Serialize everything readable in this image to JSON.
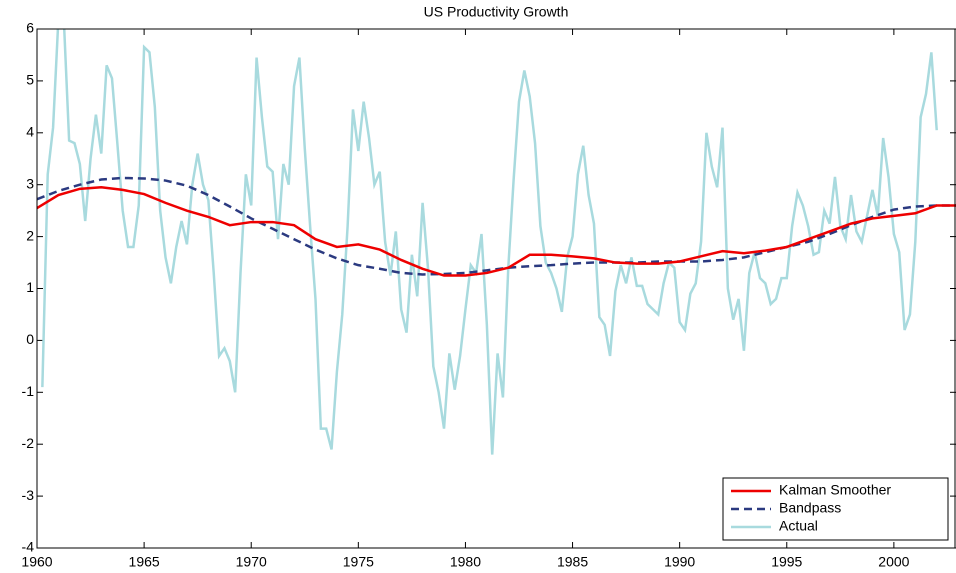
{
  "chart_data": {
    "type": "line",
    "title": "US Productivity Growth",
    "xlim": [
      1960,
      2002.9
    ],
    "xticks": [
      1960,
      1965,
      1970,
      1975,
      1980,
      1985,
      1990,
      1995,
      2000
    ],
    "ylim": [
      -4,
      6
    ],
    "yticks": [
      -4,
      -3,
      -2,
      -1,
      0,
      1,
      2,
      3,
      4,
      5,
      6
    ],
    "legend": "lower right",
    "series": [
      {
        "name": "Kalman Smoother",
        "color": "#ee0000",
        "style": "solid",
        "x": [
          1960,
          1961,
          1962,
          1963,
          1964,
          1965,
          1966,
          1967,
          1968,
          1969,
          1970,
          1971,
          1972,
          1973,
          1974,
          1975,
          1976,
          1977,
          1978,
          1979,
          1980,
          1981,
          1982,
          1983,
          1984,
          1985,
          1986,
          1987,
          1988,
          1989,
          1990,
          1991,
          1992,
          1993,
          1994,
          1995,
          1996,
          1997,
          1998,
          1999,
          2000,
          2001,
          2002,
          2002.9
        ],
        "values": [
          2.55,
          2.8,
          2.92,
          2.95,
          2.9,
          2.82,
          2.65,
          2.5,
          2.38,
          2.22,
          2.28,
          2.28,
          2.22,
          1.95,
          1.8,
          1.85,
          1.75,
          1.55,
          1.38,
          1.25,
          1.25,
          1.3,
          1.4,
          1.65,
          1.65,
          1.62,
          1.58,
          1.5,
          1.48,
          1.48,
          1.52,
          1.62,
          1.72,
          1.68,
          1.73,
          1.8,
          1.95,
          2.1,
          2.25,
          2.35,
          2.4,
          2.45,
          2.6,
          2.6
        ]
      },
      {
        "name": "Bandpass",
        "color": "#2b3a80",
        "style": "dashed",
        "x": [
          1960,
          1961,
          1962,
          1963,
          1964,
          1965,
          1966,
          1967,
          1968,
          1969,
          1970,
          1971,
          1972,
          1973,
          1974,
          1975,
          1976,
          1977,
          1978,
          1979,
          1980,
          1981,
          1982,
          1983,
          1984,
          1985,
          1986,
          1987,
          1988,
          1989,
          1990,
          1991,
          1992,
          1993,
          1994,
          1995,
          1996,
          1997,
          1998,
          1999,
          2000,
          2001,
          2002,
          2002.9
        ],
        "values": [
          2.72,
          2.88,
          3.0,
          3.1,
          3.13,
          3.12,
          3.08,
          2.98,
          2.8,
          2.58,
          2.35,
          2.15,
          1.95,
          1.75,
          1.58,
          1.45,
          1.38,
          1.3,
          1.27,
          1.28,
          1.3,
          1.35,
          1.4,
          1.43,
          1.45,
          1.48,
          1.5,
          1.5,
          1.5,
          1.52,
          1.52,
          1.52,
          1.55,
          1.6,
          1.7,
          1.8,
          1.9,
          2.05,
          2.22,
          2.38,
          2.52,
          2.58,
          2.6,
          2.6
        ]
      },
      {
        "name": "Actual",
        "color": "#a8dade",
        "style": "solid",
        "x": [
          1960.25,
          1960.5,
          1960.75,
          1961,
          1961.25,
          1961.5,
          1961.75,
          1962,
          1962.25,
          1962.5,
          1962.75,
          1963,
          1963.25,
          1963.5,
          1963.75,
          1964,
          1964.25,
          1964.5,
          1964.75,
          1965,
          1965.25,
          1965.5,
          1965.75,
          1966,
          1966.25,
          1966.5,
          1966.75,
          1967,
          1967.25,
          1967.5,
          1967.75,
          1968,
          1968.25,
          1968.5,
          1968.75,
          1969,
          1969.25,
          1969.5,
          1969.75,
          1970,
          1970.25,
          1970.5,
          1970.75,
          1971,
          1971.25,
          1971.5,
          1971.75,
          1972,
          1972.25,
          1972.5,
          1972.75,
          1973,
          1973.25,
          1973.5,
          1973.75,
          1974,
          1974.25,
          1974.5,
          1974.75,
          1975,
          1975.25,
          1975.5,
          1975.75,
          1976,
          1976.25,
          1976.5,
          1976.75,
          1977,
          1977.25,
          1977.5,
          1977.75,
          1978,
          1978.25,
          1978.5,
          1978.75,
          1979,
          1979.25,
          1979.5,
          1979.75,
          1980,
          1980.25,
          1980.5,
          1980.75,
          1981,
          1981.25,
          1981.5,
          1981.75,
          1982,
          1982.25,
          1982.5,
          1982.75,
          1983,
          1983.25,
          1983.5,
          1983.75,
          1984,
          1984.25,
          1984.5,
          1984.75,
          1985,
          1985.25,
          1985.5,
          1985.75,
          1986,
          1986.25,
          1986.5,
          1986.75,
          1987,
          1987.25,
          1987.5,
          1987.75,
          1988,
          1988.25,
          1988.5,
          1988.75,
          1989,
          1989.25,
          1989.5,
          1989.75,
          1990,
          1990.25,
          1990.5,
          1990.75,
          1991,
          1991.25,
          1991.5,
          1991.75,
          1992,
          1992.25,
          1992.5,
          1992.75,
          1993,
          1993.25,
          1993.5,
          1993.75,
          1994,
          1994.25,
          1994.5,
          1994.75,
          1995,
          1995.25,
          1995.5,
          1995.75,
          1996,
          1996.25,
          1996.5,
          1996.75,
          1997,
          1997.25,
          1997.5,
          1997.75,
          1998,
          1998.25,
          1998.5,
          1998.75,
          1999,
          1999.25,
          1999.5,
          1999.75,
          2000,
          2000.25,
          2000.5,
          2000.75,
          2001,
          2001.25,
          2001.5,
          2001.75,
          2002
        ],
        "values": [
          -0.9,
          3.2,
          4.1,
          6.2,
          6.2,
          3.85,
          3.8,
          3.4,
          2.3,
          3.5,
          4.35,
          3.6,
          5.3,
          5.05,
          3.8,
          2.5,
          1.8,
          1.8,
          2.6,
          5.65,
          5.55,
          4.5,
          2.5,
          1.6,
          1.1,
          1.8,
          2.3,
          1.85,
          3.0,
          3.6,
          3.0,
          2.7,
          1.3,
          -0.3,
          -0.15,
          -0.4,
          -1.0,
          1.3,
          3.2,
          2.6,
          5.45,
          4.3,
          3.35,
          3.25,
          1.95,
          3.4,
          3.0,
          4.9,
          5.45,
          3.7,
          2.2,
          0.8,
          -1.7,
          -1.7,
          -2.1,
          -0.6,
          0.5,
          2.2,
          4.45,
          3.65,
          4.6,
          3.9,
          3.0,
          3.25,
          1.9,
          1.25,
          2.1,
          0.6,
          0.15,
          1.65,
          0.85,
          2.65,
          1.4,
          -0.5,
          -1.0,
          -1.7,
          -0.25,
          -0.95,
          -0.3,
          0.6,
          1.45,
          1.3,
          2.05,
          0.3,
          -2.2,
          -0.25,
          -1.1,
          1.4,
          3.1,
          4.6,
          5.2,
          4.7,
          3.8,
          2.2,
          1.5,
          1.3,
          1.0,
          0.55,
          1.6,
          2.0,
          3.2,
          3.75,
          2.8,
          2.25,
          0.45,
          0.3,
          -0.3,
          0.95,
          1.45,
          1.1,
          1.6,
          1.05,
          1.05,
          0.7,
          0.6,
          0.5,
          1.1,
          1.5,
          1.4,
          0.35,
          0.2,
          0.9,
          1.1,
          1.9,
          4.0,
          3.35,
          2.95,
          4.1,
          1.0,
          0.4,
          0.8,
          -0.2,
          1.3,
          1.7,
          1.2,
          1.1,
          0.7,
          0.8,
          1.2,
          1.2,
          2.2,
          2.85,
          2.6,
          2.2,
          1.65,
          1.7,
          2.5,
          2.25,
          3.15,
          2.2,
          1.95,
          2.8,
          2.1,
          1.9,
          2.4,
          2.9,
          2.4,
          3.9,
          3.15,
          2.05,
          1.7,
          0.2,
          0.5,
          1.9,
          4.3,
          4.75,
          5.55,
          4.05
        ]
      }
    ]
  }
}
